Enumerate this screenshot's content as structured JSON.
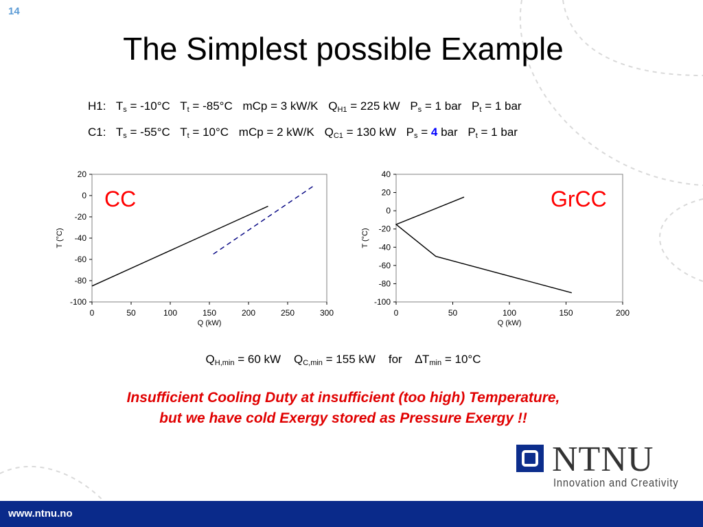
{
  "slide": {
    "number": "14",
    "title": "The Simplest possible Example"
  },
  "streams": {
    "h1": {
      "name": "H1:",
      "Ts_pre": "T",
      "Ts_sub": "s",
      "Ts_val": "= -10°C",
      "Tt_pre": "T",
      "Tt_sub": "t",
      "Tt_val": "= -85°C",
      "mcp": "mCp = 3 kW/K",
      "Q_pre": "Q",
      "Q_sub": "H1",
      "Q_val": "= 225 kW",
      "Ps_pre": "P",
      "Ps_sub": "s",
      "Ps_eq": "= ",
      "Ps_num": "1",
      "Ps_unit": " bar",
      "Pt_pre": "P",
      "Pt_sub": "t",
      "Pt_val": "= 1 bar"
    },
    "c1": {
      "name": "C1:",
      "Ts_pre": "T",
      "Ts_sub": "s",
      "Ts_val": "= -55°C",
      "Tt_pre": "T",
      "Tt_sub": "t",
      "Tt_val": "=  10°C",
      "mcp": "mCp = 2 kW/K",
      "Q_pre": "Q",
      "Q_sub": "C1",
      "Q_val": "= 130 kW",
      "Ps_pre": "P",
      "Ps_sub": "s",
      "Ps_eq": "= ",
      "Ps_num": "4",
      "Ps_unit": " bar",
      "Pt_pre": "P",
      "Pt_sub": "t",
      "Pt_val": "= 1 bar"
    }
  },
  "chart_data": [
    {
      "type": "line",
      "label": "CC",
      "xlabel": "Q (kW)",
      "ylabel": "T (°C)",
      "xlim": [
        0,
        300
      ],
      "ylim": [
        -100,
        20
      ],
      "xticks": [
        0,
        50,
        100,
        150,
        200,
        250,
        300
      ],
      "yticks": [
        20,
        0,
        -20,
        -40,
        -60,
        -80,
        -100
      ],
      "grid": false,
      "series": [
        {
          "style": "solid",
          "color": "#000000",
          "x": [
            0,
            225
          ],
          "y": [
            -85,
            -10
          ]
        },
        {
          "style": "dashed",
          "color": "#000080",
          "x": [
            155,
            285
          ],
          "y": [
            -55,
            10
          ]
        }
      ]
    },
    {
      "type": "line",
      "label": "GrCC",
      "xlabel": "Q (kW)",
      "ylabel": "T (°C)",
      "xlim": [
        0,
        200
      ],
      "ylim": [
        -100,
        40
      ],
      "xticks": [
        0,
        50,
        100,
        150,
        200
      ],
      "yticks": [
        40,
        20,
        0,
        -20,
        -40,
        -60,
        -80,
        -100
      ],
      "grid": false,
      "series": [
        {
          "style": "solid",
          "color": "#000000",
          "x": [
            60,
            0,
            35,
            155
          ],
          "y": [
            15,
            -15,
            -50,
            -90
          ]
        }
      ]
    }
  ],
  "results": {
    "qh_pre": "Q",
    "qh_sub": "H,min",
    "qh_val": " = 60 kW",
    "qc_pre": "Q",
    "qc_sub": "C,min",
    "qc_val": " = 155 kW",
    "for_text": "for",
    "dt_pre": "∆T",
    "dt_sub": "min",
    "dt_val": " = 10°C"
  },
  "message": {
    "line1": "Insufficient Cooling Duty at insufficient (too high) Temperature,",
    "line2": "but we have cold Exergy stored as Pressure Exergy !!"
  },
  "branding": {
    "logo_text": "NTNU",
    "tagline": "Innovation and Creativity",
    "url": "www.ntnu.no"
  }
}
